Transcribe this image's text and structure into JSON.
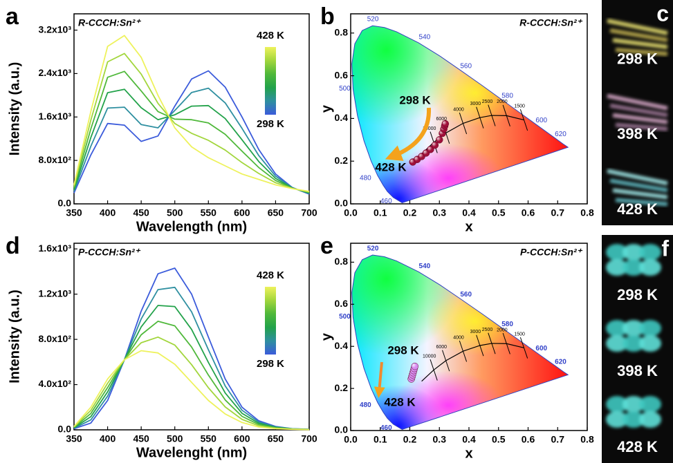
{
  "chart_data": [
    {
      "type": "line",
      "panel_label": "a",
      "title": "R-CCCH:Sn²⁺",
      "xlabel": "Wavelength (nm)",
      "ylabel": "Intensity (a.u.)",
      "x": [
        350,
        375,
        400,
        425,
        450,
        475,
        500,
        525,
        550,
        575,
        600,
        625,
        650,
        675,
        700
      ],
      "series": [
        {
          "color": "#3b5bdb",
          "values": [
            200,
            900,
            1480,
            1450,
            1150,
            1250,
            1800,
            2300,
            2450,
            2150,
            1600,
            1000,
            550,
            300,
            180
          ]
        },
        {
          "color": "#2e8fa0",
          "values": [
            230,
            1060,
            1764,
            1780,
            1460,
            1400,
            1720,
            2050,
            2130,
            1860,
            1390,
            890,
            510,
            296,
            190
          ]
        },
        {
          "color": "#22a24a",
          "values": [
            260,
            1220,
            2048,
            2110,
            1770,
            1550,
            1640,
            1800,
            1810,
            1570,
            1180,
            780,
            470,
            292,
            200
          ]
        },
        {
          "color": "#4fb83a",
          "values": [
            290,
            1380,
            2332,
            2440,
            2080,
            1700,
            1560,
            1550,
            1490,
            1280,
            970,
            670,
            430,
            288,
            210
          ]
        },
        {
          "color": "#a2d63c",
          "values": [
            320,
            1540,
            2616,
            2770,
            2390,
            1850,
            1480,
            1300,
            1170,
            990,
            760,
            560,
            390,
            284,
            220
          ]
        },
        {
          "color": "#eef25c",
          "values": [
            350,
            1700,
            2900,
            3100,
            2700,
            2000,
            1400,
            1050,
            850,
            700,
            550,
            450,
            350,
            280,
            230
          ]
        }
      ],
      "xlim": [
        350,
        700
      ],
      "xticks": [
        350,
        400,
        450,
        500,
        550,
        600,
        650,
        700
      ],
      "ylim": [
        0,
        3500
      ],
      "yticks": [
        {
          "value": 0,
          "label": "0.0"
        },
        {
          "value": 800,
          "label": "8.0x10²"
        },
        {
          "value": 1600,
          "label": "1.6x10³"
        },
        {
          "value": 2400,
          "label": "2.4x10³"
        },
        {
          "value": 3200,
          "label": "3.2x10³"
        }
      ],
      "colorbar": {
        "top": "428 K",
        "bottom": "298 K"
      }
    },
    {
      "type": "scatter",
      "panel_label": "b",
      "title": "R-CCCH:Sn²⁺",
      "xlabel": "x",
      "ylabel": "y",
      "chromaticity_diagram": true,
      "color": "#a0103a",
      "x": [
        0.21,
        0.225,
        0.24,
        0.255,
        0.27,
        0.285,
        0.3,
        0.31,
        0.315,
        0.318,
        0.32
      ],
      "values": [
        0.196,
        0.208,
        0.222,
        0.238,
        0.255,
        0.275,
        0.3,
        0.33,
        0.35,
        0.365,
        0.375
      ],
      "xlim": [
        0,
        0.8
      ],
      "xticks": [
        {
          "value": 0,
          "label": "0.0"
        },
        0.1,
        0.2,
        0.3,
        0.4,
        0.5,
        0.6,
        0.7,
        0.8
      ],
      "ylim": [
        0,
        0.89
      ],
      "yticks": [
        {
          "value": 0,
          "label": "0.0"
        },
        0.2,
        0.4,
        0.6,
        0.8
      ],
      "annotations": [
        "298 K",
        "428 K"
      ],
      "locus_labels": [
        "460",
        "480",
        "500",
        "520",
        "540",
        "560",
        "580",
        "600",
        "620"
      ],
      "cct_labels": [
        "1500",
        "2000",
        "2500",
        "3000",
        "4000",
        "6000",
        "10000"
      ]
    },
    {
      "type": "line",
      "panel_label": "d",
      "title": "P-CCCH:Sn²⁺",
      "xlabel": "Wavelenght (nm)",
      "ylabel": "Intensity (a.u.)",
      "x": [
        350,
        375,
        400,
        425,
        450,
        475,
        500,
        525,
        550,
        575,
        600,
        625,
        650,
        675,
        700
      ],
      "series": [
        {
          "color": "#3b5bdb",
          "values": [
            10,
            60,
            260,
            620,
            1050,
            1380,
            1430,
            1200,
            820,
            450,
            200,
            80,
            30,
            10,
            5
          ]
        },
        {
          "color": "#2e8fa0",
          "values": [
            14,
            88,
            298,
            620,
            980,
            1240,
            1260,
            1044,
            708,
            388,
            173,
            69,
            26,
            9,
            4
          ]
        },
        {
          "color": "#22a24a",
          "values": [
            18,
            116,
            336,
            620,
            910,
            1100,
            1090,
            888,
            596,
            326,
            146,
            58,
            22,
            8,
            4
          ]
        },
        {
          "color": "#4fb83a",
          "values": [
            22,
            144,
            374,
            620,
            840,
            960,
            920,
            732,
            484,
            264,
            119,
            47,
            18,
            7,
            3
          ]
        },
        {
          "color": "#a2d63c",
          "values": [
            26,
            172,
            412,
            620,
            770,
            820,
            750,
            576,
            372,
            202,
            92,
            36,
            14,
            6,
            2
          ]
        },
        {
          "color": "#eef25c",
          "values": [
            30,
            200,
            450,
            620,
            700,
            680,
            580,
            420,
            260,
            140,
            65,
            25,
            10,
            5,
            2
          ]
        }
      ],
      "xlim": [
        350,
        700
      ],
      "xticks": [
        350,
        400,
        450,
        500,
        550,
        600,
        650,
        700
      ],
      "ylim": [
        0,
        1650
      ],
      "yticks": [
        {
          "value": 0,
          "label": "0.0"
        },
        {
          "value": 400,
          "label": "4.0x10²"
        },
        {
          "value": 800,
          "label": "8.0x10²"
        },
        {
          "value": 1200,
          "label": "1.2x10³"
        },
        {
          "value": 1600,
          "label": "1.6x10³"
        }
      ],
      "colorbar": {
        "top": "428 K",
        "bottom": "298 K"
      }
    },
    {
      "type": "scatter",
      "panel_label": "e",
      "title": "P-CCCH:Sn²⁺",
      "xlabel": "x",
      "ylabel": "y",
      "chromaticity_diagram": true,
      "color": "#d78cf0",
      "x": [
        0.205,
        0.207,
        0.209,
        0.211,
        0.213,
        0.215,
        0.217
      ],
      "values": [
        0.245,
        0.255,
        0.265,
        0.275,
        0.285,
        0.295,
        0.305
      ],
      "xlim": [
        0,
        0.8
      ],
      "xticks": [
        {
          "value": 0,
          "label": "0.0"
        },
        0.1,
        0.2,
        0.3,
        0.4,
        0.5,
        0.6,
        0.7,
        0.8
      ],
      "ylim": [
        0,
        0.89
      ],
      "yticks": [
        {
          "value": 0,
          "label": "0.0"
        },
        0.2,
        0.4,
        0.6,
        0.8
      ],
      "annotations": [
        "298 K",
        "428 K"
      ],
      "locus_labels": [
        "460",
        "480",
        "500",
        "520",
        "540",
        "560",
        "580",
        "600",
        "620"
      ],
      "cct_labels": [
        "1500",
        "2000",
        "2500",
        "3000",
        "4000",
        "6000",
        "10000"
      ]
    }
  ],
  "photos": [
    {
      "panel_label": "c",
      "labels": [
        "298 K",
        "398 K",
        "428 K"
      ]
    },
    {
      "panel_label": "f",
      "labels": [
        "298 K",
        "398 K",
        "428 K"
      ]
    }
  ]
}
